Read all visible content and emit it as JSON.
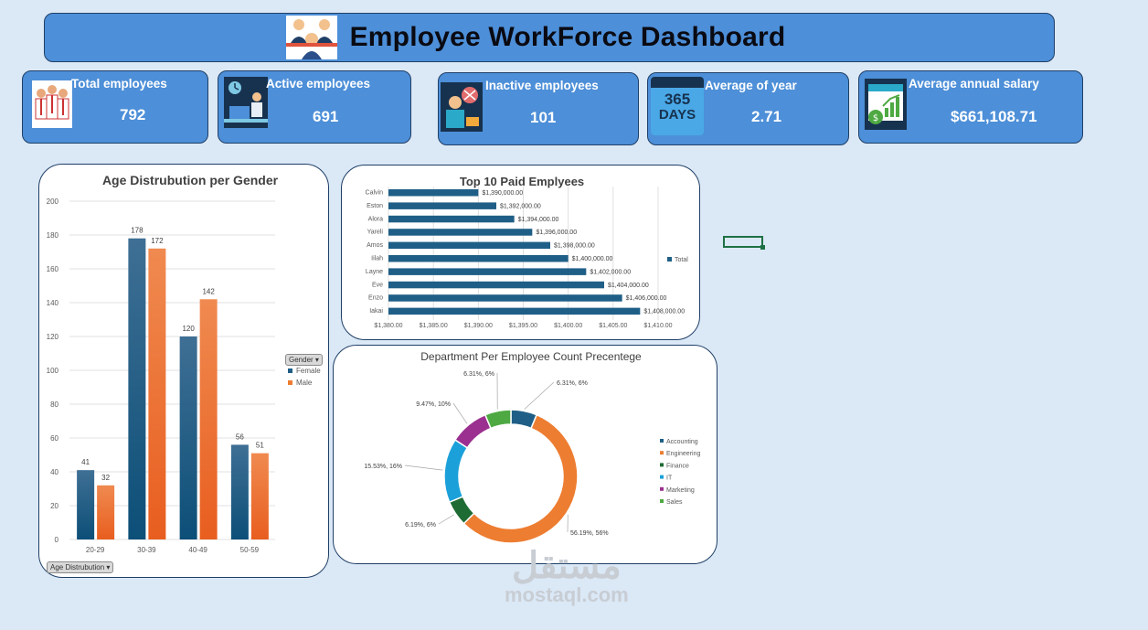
{
  "header": {
    "title": "Employee WorkForce  Dashboard"
  },
  "kpis": [
    {
      "label": "Total employees",
      "value": "792"
    },
    {
      "label": "Active employees",
      "value": "691"
    },
    {
      "label": "Inactive employees",
      "value": "101"
    },
    {
      "label": "Average of year",
      "value": "2.71",
      "icon_text_1": "365",
      "icon_text_2": "DAYS"
    },
    {
      "label": "Average annual salary",
      "value": "$661,108.71"
    }
  ],
  "filters": {
    "gender": "Gender",
    "age": "Age Distrubution"
  },
  "watermark": {
    "arabic": "مستقل",
    "latin": "mostaql.com"
  },
  "colors": {
    "female": "#1f5f87",
    "male": "#ed7d31",
    "accent": "#4d8fd8"
  },
  "chart_data": [
    {
      "type": "bar",
      "title": "Age Distrubution per Gender",
      "categories": [
        "20-29",
        "30-39",
        "40-49",
        "50-59"
      ],
      "series": [
        {
          "name": "Female",
          "values": [
            41,
            178,
            120,
            56
          ]
        },
        {
          "name": "Male",
          "values": [
            32,
            172,
            142,
            51
          ]
        }
      ],
      "ylim": [
        0,
        200
      ],
      "yticks": [
        0,
        20,
        40,
        60,
        80,
        100,
        120,
        140,
        160,
        180,
        200
      ]
    },
    {
      "type": "bar",
      "orientation": "horizontal",
      "title": "Top 10 Paid Emplyees",
      "categories": [
        "Calvin",
        "Eston",
        "Alora",
        "Yareli",
        "Amos",
        "Iilah",
        "Layne",
        "Eve",
        "Enzo",
        "Iakai"
      ],
      "values": [
        1390000,
        1392000,
        1394000,
        1396000,
        1398000,
        1400000,
        1402000,
        1404000,
        1406000,
        1408000
      ],
      "value_labels": [
        "$1,390,000.00",
        "$1,392,000.00",
        "$1,394,000.00",
        "$1,396,000.00",
        "$1,398,000.00",
        "$1,400,000.00",
        "$1,402,000.00",
        "$1,404,000.00",
        "$1,406,000.00",
        "$1,408,000.00"
      ],
      "series_name": "Total",
      "xlim": [
        1380,
        1410
      ],
      "xticks": [
        1380,
        1385,
        1390,
        1395,
        1400,
        1405,
        1410
      ],
      "xtick_labels": [
        "$1,380.00",
        "$1,385.00",
        "$1,390.00",
        "$1,395.00",
        "$1,400.00",
        "$1,405.00",
        "$1,410.00"
      ]
    },
    {
      "type": "pie",
      "variant": "donut",
      "title": "Department Per Employee Count Precentege",
      "labels": [
        "Accounting",
        "Engineering",
        "Finance",
        "IT",
        "Marketing",
        "Sales"
      ],
      "values": [
        6.31,
        56.19,
        6.19,
        15.53,
        9.47,
        6.31
      ],
      "data_labels": [
        "6.31%, 6%",
        "56.19%, 56%",
        "6.19%, 6%",
        "15.53%, 16%",
        "9.47%, 10%",
        "6.31%, 6%"
      ],
      "colors": [
        "#1f5f87",
        "#ed7d31",
        "#1e6b34",
        "#1ca0d9",
        "#9b3090",
        "#4ea943"
      ]
    }
  ]
}
